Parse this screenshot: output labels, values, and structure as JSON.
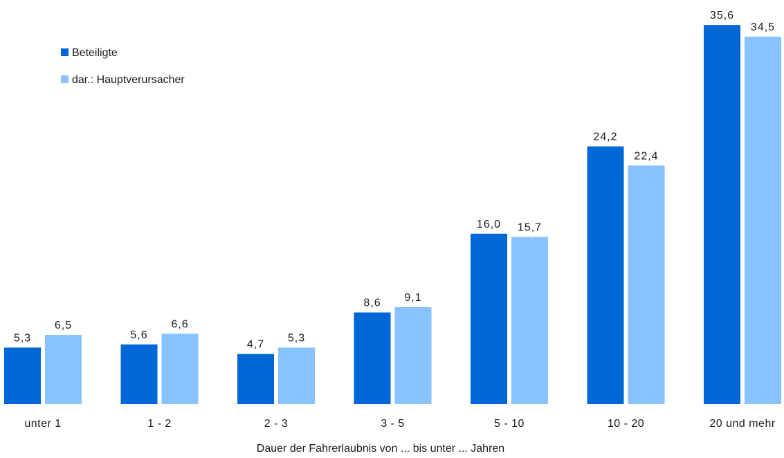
{
  "chart_data": {
    "type": "bar",
    "categories": [
      "unter 1",
      "1 - 2",
      "2 - 3",
      "3 - 5",
      "5 - 10",
      "10 - 20",
      "20 und mehr"
    ],
    "series": [
      {
        "name": "Beteiligte",
        "color": "#0068d6",
        "values": [
          5.3,
          5.6,
          4.7,
          8.6,
          16.0,
          24.2,
          35.6
        ],
        "labels": [
          "5,3",
          "5,6",
          "4,7",
          "8,6",
          "16,0",
          "24,2",
          "35,6"
        ]
      },
      {
        "name": "dar.: Hauptverursacher",
        "color": "#88c2ff",
        "values": [
          6.5,
          6.6,
          5.3,
          9.1,
          15.7,
          22.4,
          34.5
        ],
        "labels": [
          "6,5",
          "6,6",
          "5,3",
          "9,1",
          "15,7",
          "22,4",
          "34,5"
        ]
      }
    ],
    "xlabel": "Dauer der Fahrerlaubnis von ... bis unter ... Jahren",
    "ylabel": "",
    "ylim": [
      0,
      36
    ],
    "grid": false,
    "legend": "top-left"
  }
}
